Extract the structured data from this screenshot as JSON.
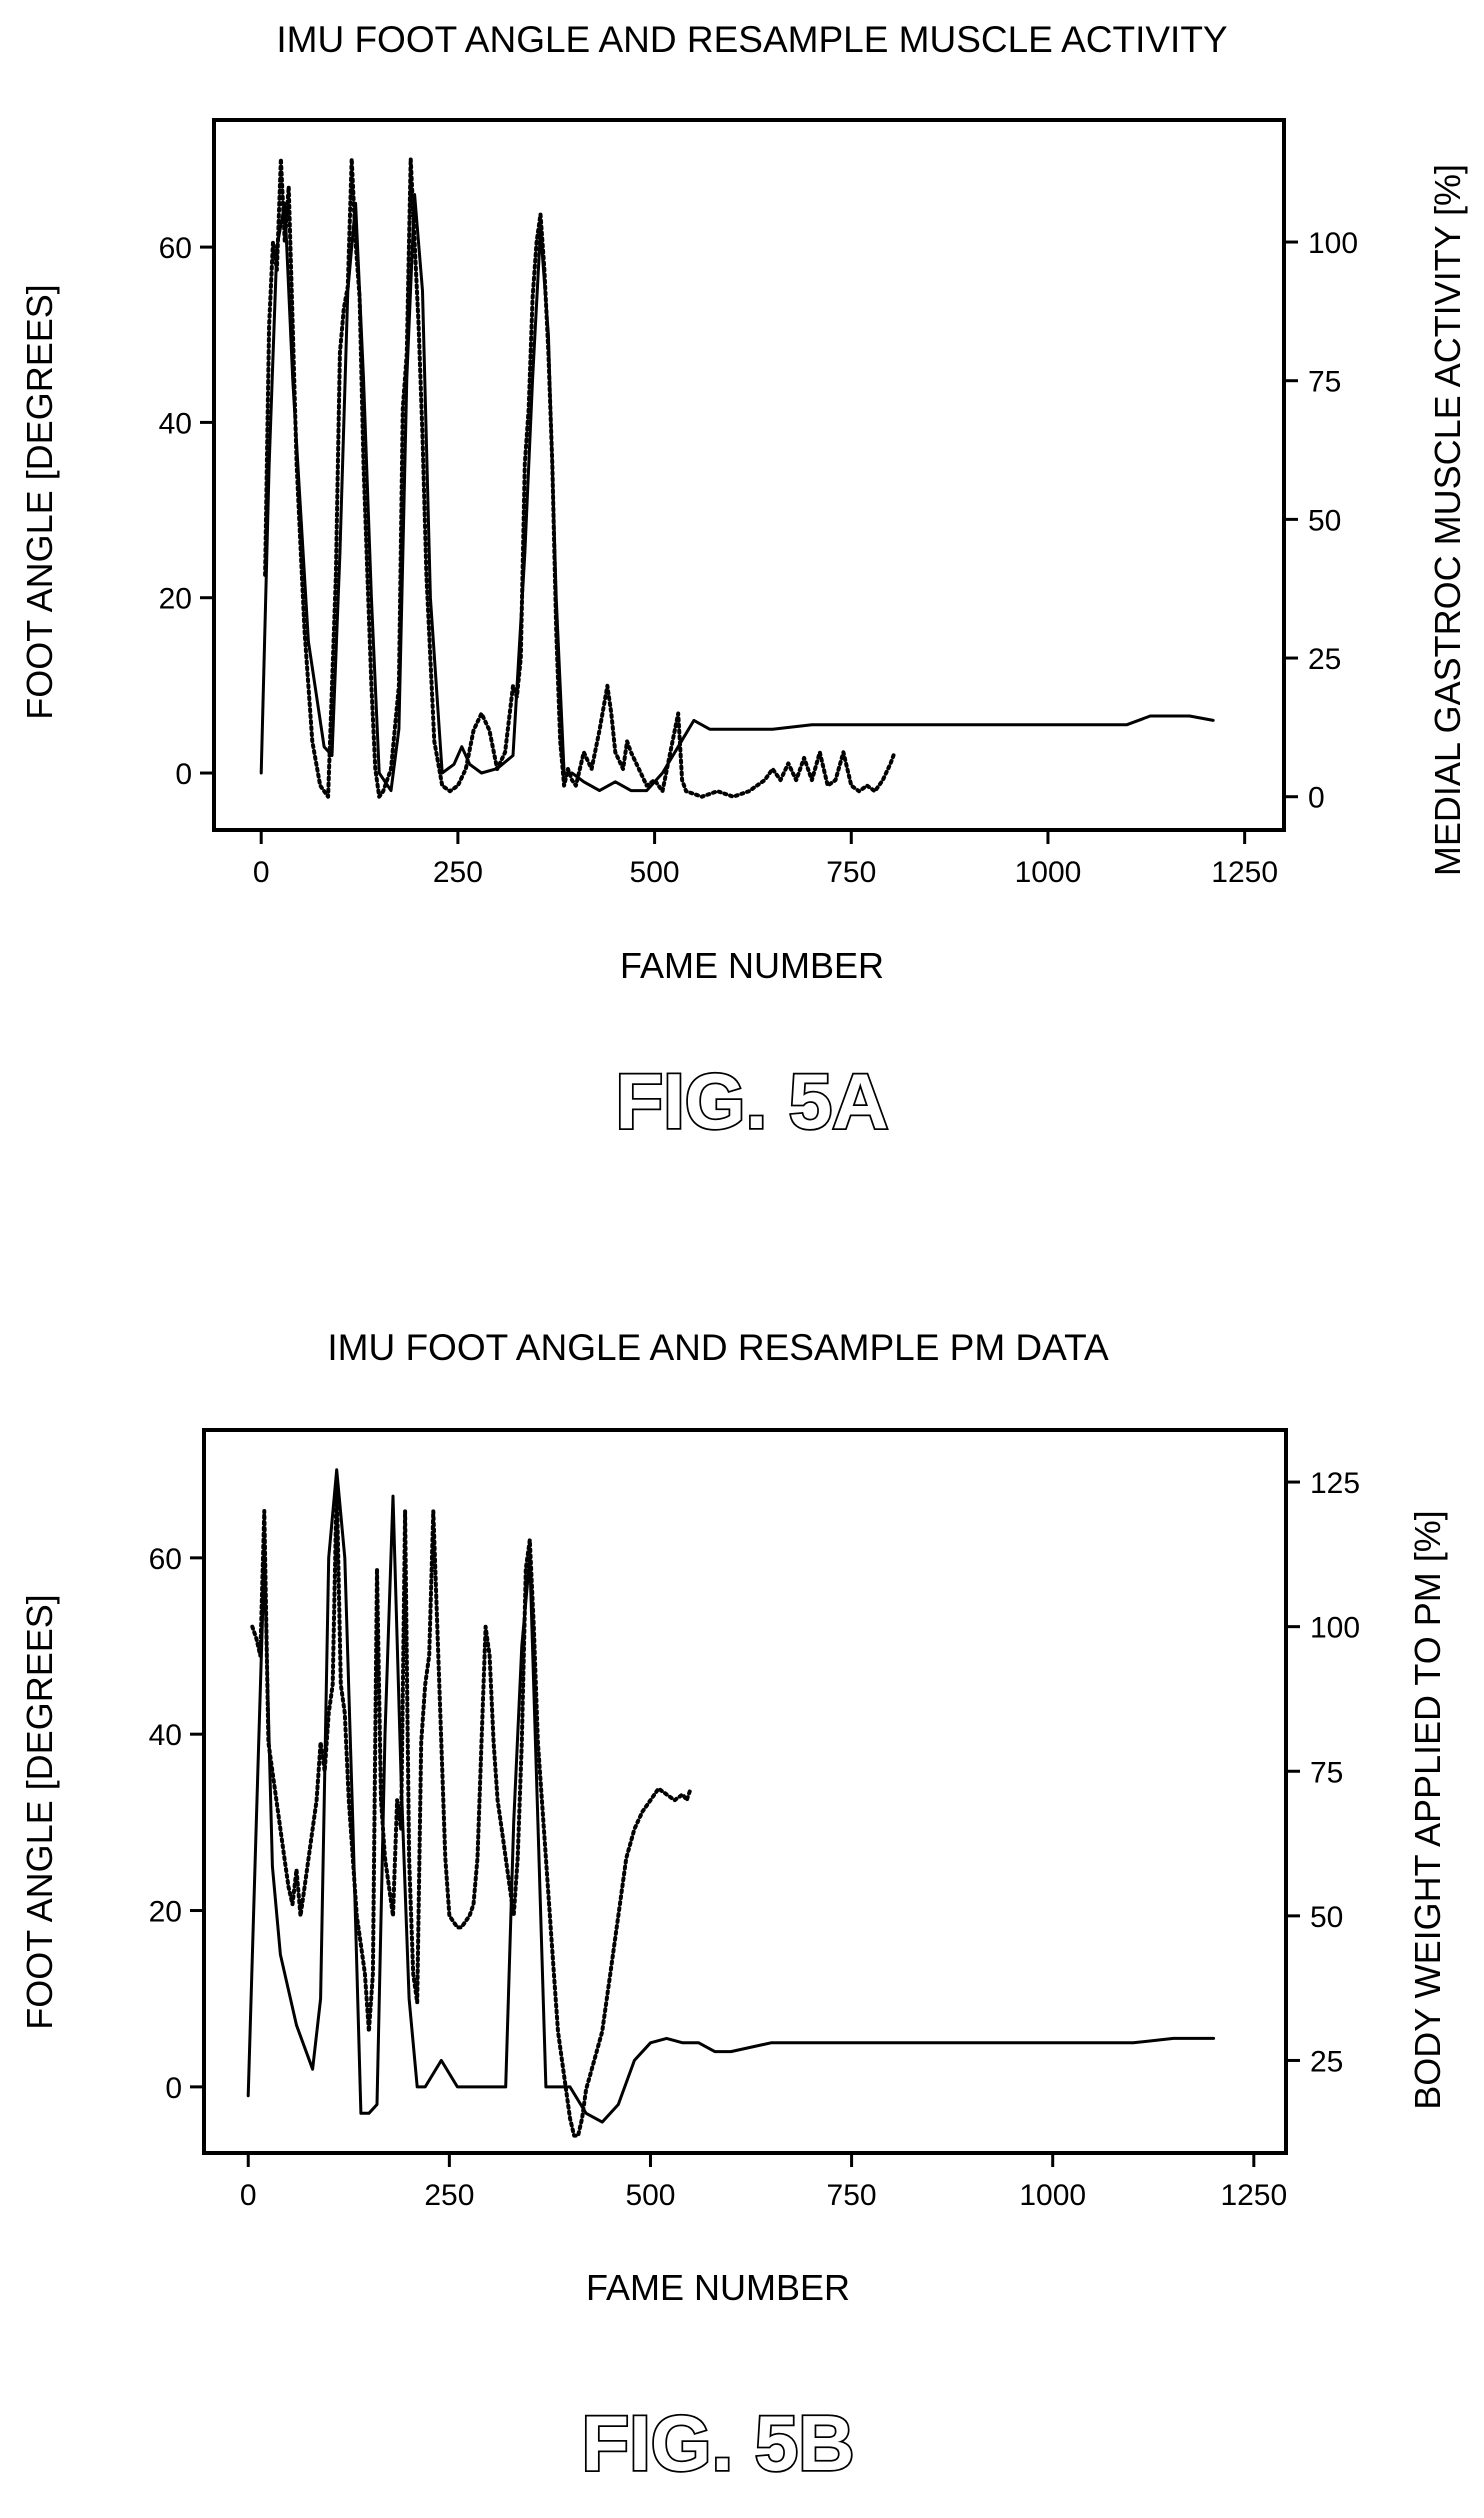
{
  "chart_data": [
    {
      "type": "line",
      "title": "IMU FOOT ANGLE AND RESAMPLE MUSCLE ACTIVITY",
      "xlabel": "FAME NUMBER",
      "ylabel": "FOOT ANGLE [DEGREES]",
      "y2label": "MEDIAL GASTROC MUSCLE ACTIVITY [%]",
      "figure_label": "FIG. 5A",
      "xlim": [
        -60,
        1300
      ],
      "ylim": [
        -6.5,
        74.5
      ],
      "y2lim": [
        -6,
        122
      ],
      "xticks": [
        "0",
        "250",
        "500",
        "750",
        "1000",
        "1250"
      ],
      "yticks": [
        "0",
        "20",
        "40",
        "60"
      ],
      "y2ticks": [
        "0",
        "25",
        "50",
        "75",
        "100"
      ],
      "grid": false,
      "series": [
        {
          "axis": "left",
          "style": "solid",
          "color": "#000000",
          "x": [
            0,
            10,
            20,
            30,
            40,
            60,
            80,
            90,
            100,
            110,
            120,
            130,
            140,
            150,
            165,
            175,
            185,
            195,
            205,
            215,
            230,
            245,
            255,
            265,
            280,
            300,
            320,
            335,
            345,
            355,
            365,
            375,
            385,
            395,
            410,
            430,
            450,
            470,
            490,
            510,
            530,
            550,
            570,
            600,
            650,
            700,
            750,
            800,
            850,
            900,
            950,
            1000,
            1050,
            1100,
            1130,
            1150,
            1180,
            1210
          ],
          "y": [
            0,
            35,
            60,
            65,
            45,
            15,
            3,
            2,
            25,
            55,
            65,
            45,
            20,
            0,
            -2,
            5,
            45,
            66,
            55,
            20,
            0,
            1,
            3,
            1,
            0,
            0.5,
            2,
            25,
            45,
            62,
            50,
            20,
            0,
            0,
            -1,
            -2,
            -1,
            -2,
            -2,
            0,
            3,
            6,
            5,
            5,
            5,
            5.5,
            5.5,
            5.5,
            5.5,
            5.5,
            5.5,
            5.5,
            5.5,
            5.5,
            6.5,
            6.5,
            6.5,
            6
          ]
        },
        {
          "axis": "right",
          "style": "dotted",
          "color": "#000000",
          "x": [
            5,
            10,
            15,
            20,
            25,
            30,
            35,
            40,
            45,
            55,
            65,
            75,
            85,
            95,
            100,
            105,
            110,
            115,
            120,
            125,
            130,
            135,
            140,
            145,
            150,
            155,
            165,
            175,
            180,
            185,
            190,
            195,
            200,
            205,
            210,
            220,
            230,
            240,
            250,
            260,
            270,
            280,
            290,
            300,
            310,
            320,
            325,
            330,
            335,
            340,
            345,
            350,
            355,
            360,
            365,
            370,
            375,
            380,
            385,
            390,
            395,
            400,
            410,
            420,
            430,
            440,
            445,
            450,
            460,
            465,
            470,
            480,
            490,
            500,
            510,
            520,
            530,
            535,
            540,
            560,
            580,
            600,
            620,
            640,
            650,
            660,
            670,
            680,
            690,
            700,
            710,
            720,
            730,
            740,
            750,
            760,
            770,
            780,
            790,
            800,
            805
          ],
          "y": [
            40,
            85,
            100,
            95,
            115,
            100,
            110,
            85,
            60,
            30,
            10,
            2,
            0,
            40,
            80,
            88,
            92,
            115,
            100,
            90,
            60,
            40,
            20,
            5,
            0,
            1,
            5,
            20,
            70,
            80,
            115,
            100,
            85,
            65,
            40,
            10,
            2,
            1,
            2,
            5,
            12,
            15,
            12,
            5,
            8,
            20,
            18,
            25,
            60,
            70,
            90,
            100,
            105,
            95,
            80,
            60,
            30,
            10,
            2,
            5,
            3,
            2,
            8,
            5,
            12,
            20,
            15,
            8,
            5,
            10,
            8,
            5,
            2,
            3,
            1,
            8,
            15,
            3,
            1,
            0,
            1,
            0,
            1,
            3,
            5,
            3,
            6,
            3,
            7,
            3,
            8,
            2,
            3,
            8,
            2,
            1,
            2,
            1,
            3,
            6,
            8
          ]
        }
      ]
    },
    {
      "type": "line",
      "title": "IMU FOOT ANGLE AND RESAMPLE PM DATA",
      "xlabel": "FAME NUMBER",
      "ylabel": "FOOT ANGLE [DEGREES]",
      "y2label": "BODY WEIGHT APPLIED TO PM [%]",
      "figure_label": "FIG. 5B",
      "xlim": [
        -55,
        1290
      ],
      "ylim": [
        -7.5,
        74.5
      ],
      "y2lim": [
        9,
        134
      ],
      "xticks": [
        "0",
        "250",
        "500",
        "750",
        "1000",
        "1250"
      ],
      "yticks": [
        "0",
        "20",
        "40",
        "60"
      ],
      "y2ticks": [
        "25",
        "50",
        "75",
        "100",
        "125"
      ],
      "grid": false,
      "series": [
        {
          "axis": "left",
          "style": "solid",
          "color": "#000000",
          "x": [
            0,
            10,
            20,
            30,
            40,
            60,
            80,
            90,
            100,
            110,
            120,
            130,
            140,
            150,
            160,
            170,
            180,
            190,
            200,
            210,
            220,
            240,
            260,
            280,
            300,
            320,
            330,
            340,
            350,
            360,
            370,
            380,
            390,
            400,
            420,
            440,
            460,
            480,
            500,
            520,
            540,
            560,
            580,
            600,
            650,
            700,
            750,
            800,
            850,
            900,
            950,
            1000,
            1050,
            1100,
            1150,
            1200
          ],
          "y": [
            -1,
            30,
            60,
            25,
            15,
            7,
            2,
            10,
            60,
            70,
            60,
            30,
            -3,
            -3,
            -2,
            40,
            67,
            35,
            10,
            0,
            0,
            3,
            0,
            0,
            0,
            0,
            30,
            50,
            60,
            30,
            0,
            0,
            0,
            0,
            -3,
            -4,
            -2,
            3,
            5,
            5.5,
            5,
            5,
            4,
            4,
            5,
            5,
            5,
            5,
            5,
            5,
            5,
            5,
            5,
            5,
            5.5,
            5.5
          ]
        },
        {
          "axis": "right",
          "style": "dotted",
          "color": "#000000",
          "x": [
            5,
            10,
            15,
            20,
            25,
            30,
            35,
            40,
            45,
            50,
            55,
            60,
            65,
            70,
            75,
            80,
            85,
            90,
            95,
            100,
            105,
            110,
            115,
            120,
            125,
            130,
            135,
            140,
            145,
            150,
            155,
            160,
            165,
            170,
            175,
            180,
            185,
            190,
            195,
            200,
            205,
            210,
            215,
            220,
            225,
            230,
            235,
            240,
            245,
            250,
            255,
            260,
            265,
            270,
            275,
            280,
            285,
            290,
            295,
            300,
            305,
            310,
            315,
            320,
            325,
            330,
            335,
            340,
            345,
            350,
            355,
            360,
            365,
            370,
            375,
            380,
            385,
            390,
            395,
            400,
            405,
            410,
            415,
            420,
            430,
            440,
            450,
            460,
            470,
            480,
            490,
            500,
            510,
            520,
            530,
            540,
            545,
            550
          ],
          "y": [
            100,
            98,
            95,
            120,
            80,
            75,
            70,
            65,
            60,
            55,
            52,
            58,
            50,
            55,
            60,
            65,
            70,
            80,
            75,
            85,
            90,
            125,
            90,
            85,
            70,
            60,
            50,
            45,
            40,
            30,
            40,
            110,
            70,
            60,
            55,
            50,
            70,
            65,
            120,
            60,
            40,
            35,
            80,
            90,
            95,
            120,
            100,
            80,
            60,
            50,
            49,
            48,
            48,
            49,
            50,
            52,
            60,
            80,
            100,
            95,
            80,
            70,
            65,
            60,
            55,
            50,
            60,
            80,
            110,
            115,
            100,
            80,
            70,
            60,
            50,
            40,
            30,
            25,
            20,
            15,
            12,
            12,
            15,
            20,
            25,
            30,
            40,
            50,
            60,
            65,
            68,
            70,
            72,
            71,
            70,
            71,
            70,
            72
          ]
        }
      ]
    }
  ]
}
